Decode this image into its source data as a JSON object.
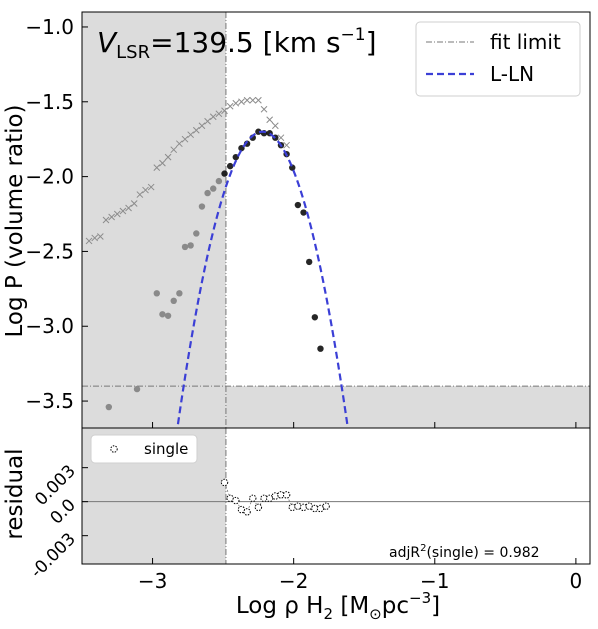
{
  "chart_data": [
    {
      "type": "scatter",
      "title": "V_LSR=139.5 [km s^-1]",
      "title_parts": {
        "v": "V",
        "sub": "LSR",
        "value": "=139.5 [km s",
        "exp": "−1",
        "close": "]"
      },
      "ylabel": "Log P (volume ratio)",
      "xlim": [
        -3.5,
        0.1
      ],
      "ylim": [
        -3.68,
        -0.9
      ],
      "x_ticks": [
        -3,
        -2,
        -1,
        0
      ],
      "y_ticks": [
        -1.0,
        -1.5,
        -2.0,
        -2.5,
        -3.0,
        -3.5
      ],
      "y_tick_labels": [
        "−1.0",
        "−1.5",
        "−2.0",
        "−2.5",
        "−3.0",
        "−3.5"
      ],
      "fit_limit_x": -2.48,
      "fit_limit_y": -3.4,
      "legend": {
        "position": "top-right",
        "entries": [
          "fit limit",
          "L-LN"
        ]
      },
      "series": [
        {
          "name": "cross-markers",
          "marker": "x",
          "color": "#8c8c8c",
          "points": [
            [
              -3.45,
              -2.43
            ],
            [
              -3.41,
              -2.41
            ],
            [
              -3.37,
              -2.4
            ],
            [
              -3.33,
              -2.29
            ],
            [
              -3.29,
              -2.27
            ],
            [
              -3.25,
              -2.25
            ],
            [
              -3.21,
              -2.23
            ],
            [
              -3.17,
              -2.21
            ],
            [
              -3.13,
              -2.18
            ],
            [
              -3.09,
              -2.12
            ],
            [
              -3.05,
              -2.09
            ],
            [
              -3.01,
              -2.07
            ],
            [
              -2.97,
              -1.94
            ],
            [
              -2.93,
              -1.91
            ],
            [
              -2.89,
              -1.87
            ],
            [
              -2.85,
              -1.82
            ],
            [
              -2.81,
              -1.78
            ],
            [
              -2.77,
              -1.75
            ],
            [
              -2.73,
              -1.72
            ],
            [
              -2.69,
              -1.69
            ],
            [
              -2.65,
              -1.66
            ],
            [
              -2.61,
              -1.63
            ],
            [
              -2.57,
              -1.6
            ],
            [
              -2.53,
              -1.58
            ],
            [
              -2.49,
              -1.56
            ],
            [
              -2.45,
              -1.53
            ],
            [
              -2.41,
              -1.51
            ],
            [
              -2.37,
              -1.5
            ],
            [
              -2.33,
              -1.49
            ],
            [
              -2.29,
              -1.49
            ],
            [
              -2.25,
              -1.49
            ],
            [
              -2.21,
              -1.55
            ],
            [
              -2.17,
              -1.62
            ],
            [
              -2.13,
              -1.66
            ],
            [
              -2.09,
              -1.74
            ],
            [
              -2.05,
              -1.79
            ]
          ]
        },
        {
          "name": "excluded-points",
          "marker": "o",
          "color": "#8a8a8a",
          "points": [
            [
              -3.31,
              -3.54
            ],
            [
              -3.11,
              -3.42
            ],
            [
              -2.97,
              -2.78
            ],
            [
              -2.93,
              -2.92
            ],
            [
              -2.89,
              -2.93
            ],
            [
              -2.85,
              -2.83
            ],
            [
              -2.81,
              -2.78
            ],
            [
              -2.77,
              -2.47
            ],
            [
              -2.73,
              -2.46
            ],
            [
              -2.69,
              -2.38
            ],
            [
              -2.65,
              -2.2
            ],
            [
              -2.61,
              -2.11
            ],
            [
              -2.57,
              -2.08
            ],
            [
              -2.53,
              -2.03
            ]
          ]
        },
        {
          "name": "fit-points",
          "marker": "o",
          "color": "#000000",
          "points": [
            [
              -2.49,
              -1.98
            ],
            [
              -2.45,
              -1.93
            ],
            [
              -2.41,
              -1.87
            ],
            [
              -2.37,
              -1.81
            ],
            [
              -2.33,
              -1.78
            ],
            [
              -2.29,
              -1.74
            ],
            [
              -2.25,
              -1.7
            ],
            [
              -2.21,
              -1.71
            ],
            [
              -2.17,
              -1.71
            ],
            [
              -2.13,
              -1.74
            ],
            [
              -2.09,
              -1.79
            ],
            [
              -2.05,
              -1.85
            ],
            [
              -2.01,
              -1.94
            ],
            [
              -1.97,
              -2.19
            ],
            [
              -1.93,
              -2.24
            ],
            [
              -1.89,
              -2.57
            ],
            [
              -1.85,
              -2.94
            ],
            [
              -1.81,
              -3.15
            ]
          ]
        }
      ],
      "fit_curve": {
        "name": "L-LN",
        "color": "#3b3fd6",
        "mu": -2.22,
        "sigma": 0.2,
        "peak": -1.7
      }
    },
    {
      "type": "scatter",
      "ylabel": "residual",
      "xlabel_parts": {
        "pre": "Log   ρ H",
        "sub": "2",
        "mid": " [M",
        "sun": "⊙",
        "unit": "pc",
        "exp": "−3",
        "close": "]"
      },
      "xlim": [
        -3.5,
        0.1
      ],
      "ylim": [
        -0.0055,
        0.0065
      ],
      "x_ticks": [
        -3,
        -2,
        -1,
        0
      ],
      "x_tick_labels": [
        "−3",
        "−2",
        "−1",
        "0"
      ],
      "y_ticks": [
        0.003,
        0.0,
        -0.003
      ],
      "y_tick_labels": [
        "0.003",
        "0.0",
        "-0.003"
      ],
      "legend": {
        "position": "top-left",
        "entries": [
          "single"
        ]
      },
      "annotation": {
        "label": "adjR",
        "exp": "2",
        "rest": "(single)  = 0.982"
      },
      "series": [
        {
          "name": "single",
          "marker": "open-circle",
          "color": "#000000",
          "points": [
            [
              -2.49,
              0.0017
            ],
            [
              -2.45,
              0.0003
            ],
            [
              -2.41,
              0.0001
            ],
            [
              -2.37,
              -0.0007
            ],
            [
              -2.33,
              -0.0009
            ],
            [
              -2.29,
              0.0003
            ],
            [
              -2.25,
              -0.0005
            ],
            [
              -2.21,
              0.0003
            ],
            [
              -2.17,
              0.0003
            ],
            [
              -2.13,
              0.0005
            ],
            [
              -2.09,
              0.0006
            ],
            [
              -2.05,
              0.0006
            ],
            [
              -2.01,
              -0.0005
            ],
            [
              -1.97,
              -0.0004
            ],
            [
              -1.93,
              -0.0005
            ],
            [
              -1.89,
              -0.0004
            ],
            [
              -1.85,
              -0.0006
            ],
            [
              -1.81,
              -0.0006
            ],
            [
              -1.77,
              -0.0004
            ]
          ]
        }
      ]
    }
  ]
}
